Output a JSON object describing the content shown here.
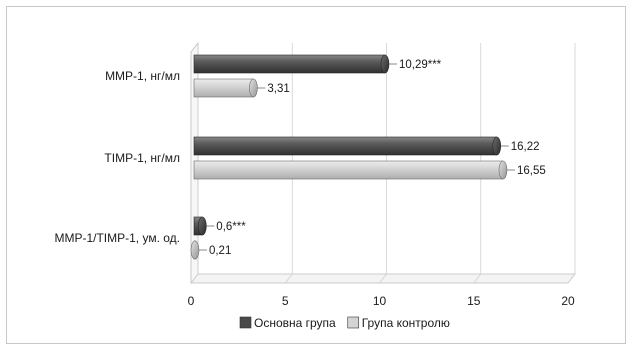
{
  "chart_data": {
    "type": "bar",
    "orientation": "horizontal",
    "style": "3d-cylinder",
    "categories": [
      "MMP-1, нг/мл",
      "TIMP-1, нг/мл",
      "MMP-1/TIMP-1, ум. од."
    ],
    "series": [
      {
        "name": "Основна група",
        "values": [
          10.29,
          16.22,
          0.6
        ],
        "labels": [
          "10,29***",
          "16,22",
          "0,6***"
        ],
        "color": "#4a4a4a"
      },
      {
        "name": "Група контролю",
        "values": [
          3.31,
          16.55,
          0.21
        ],
        "labels": [
          "3,31",
          "16,55",
          "0,21"
        ],
        "color": "#d4d4d4"
      }
    ],
    "xlim": [
      0,
      20
    ],
    "xticks": [
      0,
      5,
      10,
      15,
      20
    ],
    "xtick_labels": [
      "0",
      "5",
      "10",
      "15",
      "20"
    ],
    "grid": "vertical",
    "legend_position": "bottom"
  }
}
